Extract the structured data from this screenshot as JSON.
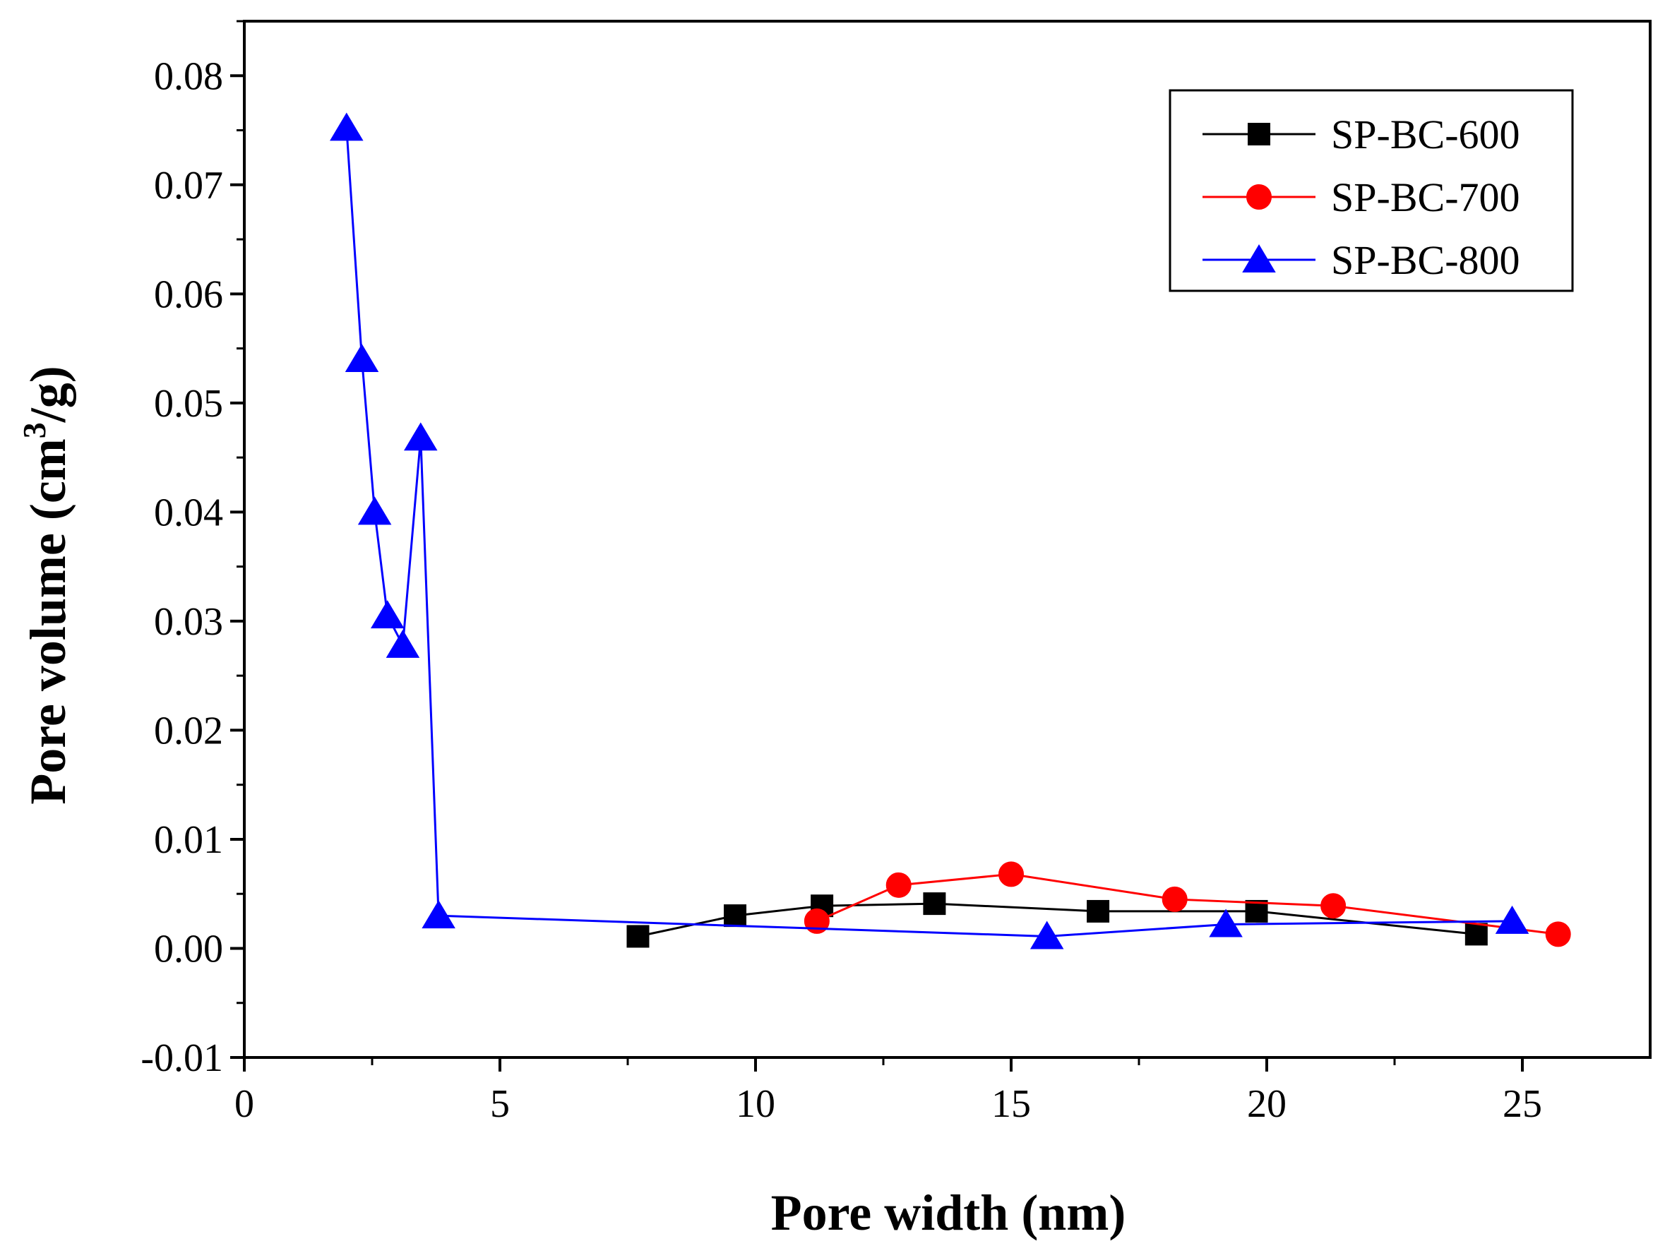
{
  "chart_data": {
    "type": "line",
    "title": "",
    "xlabel": "Pore width (nm)",
    "ylabel_main": "Pore volume (cm",
    "ylabel_sup": "3",
    "ylabel_tail": "/g)",
    "xlim": [
      0,
      27.5
    ],
    "ylim": [
      -0.01,
      0.085
    ],
    "x_ticks": [
      0,
      5,
      10,
      15,
      20,
      25
    ],
    "x_tick_labels": [
      "0",
      "5",
      "10",
      "15",
      "20",
      "25"
    ],
    "y_ticks": [
      -0.01,
      0.0,
      0.01,
      0.02,
      0.03,
      0.04,
      0.05,
      0.06,
      0.07,
      0.08
    ],
    "y_tick_labels": [
      "-0.01",
      "0.00",
      "0.01",
      "0.02",
      "0.03",
      "0.04",
      "0.05",
      "0.06",
      "0.07",
      "0.08"
    ],
    "legend_position": "top-right",
    "series": [
      {
        "name": "SP-BC-600",
        "color": "#000000",
        "marker": "square",
        "x": [
          7.7,
          9.6,
          11.3,
          13.5,
          16.7,
          19.8,
          24.1
        ],
        "y": [
          0.0011,
          0.003,
          0.0039,
          0.0041,
          0.0034,
          0.0034,
          0.0013
        ]
      },
      {
        "name": "SP-BC-700",
        "color": "#ff0000",
        "marker": "circle",
        "x": [
          11.2,
          12.8,
          15.0,
          18.2,
          21.3,
          25.7
        ],
        "y": [
          0.0025,
          0.0058,
          0.0068,
          0.0045,
          0.0039,
          0.0013
        ]
      },
      {
        "name": "SP-BC-800",
        "color": "#0000ff",
        "marker": "triangle",
        "x": [
          2.0,
          2.3,
          2.55,
          2.8,
          3.1,
          3.45,
          3.8,
          15.7,
          19.2,
          24.8
        ],
        "y": [
          0.0752,
          0.054,
          0.04,
          0.0305,
          0.0278,
          0.0468,
          0.003,
          0.0011,
          0.0022,
          0.0025
        ]
      }
    ]
  }
}
